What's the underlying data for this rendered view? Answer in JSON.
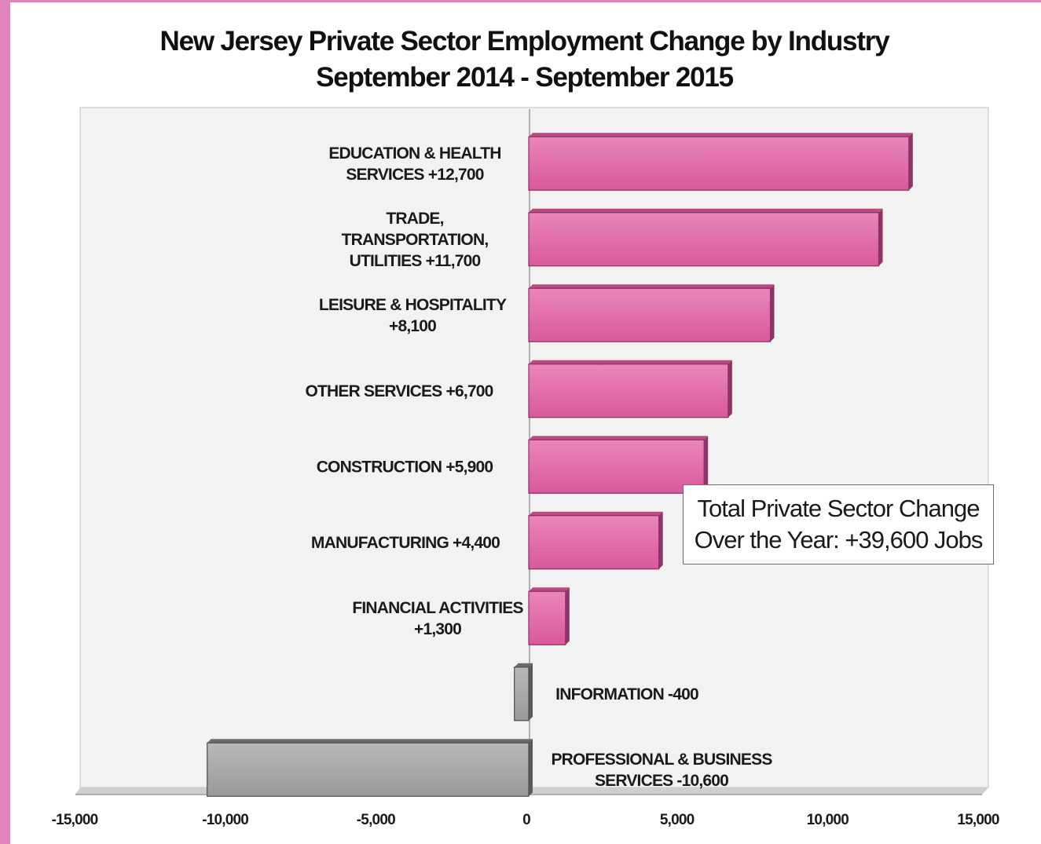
{
  "chart_data": {
    "type": "bar",
    "orientation": "horizontal",
    "title": "New Jersey Private Sector Employment Change by Industry",
    "subtitle": "September 2014 - September 2015",
    "categories": [
      "EDUCATION & HEALTH SERVICES +12,700",
      "TRADE, TRANSPORTATION, UTILITIES +11,700",
      "LEISURE & HOSPITALITY +8,100",
      "OTHER SERVICES +6,700",
      "CONSTRUCTION +5,900",
      "MANUFACTURING +4,400",
      "FINANCIAL ACTIVITIES +1,300",
      "INFORMATION -400",
      "PROFESSIONAL & BUSINESS SERVICES -10,600"
    ],
    "category_label_lines": [
      [
        "EDUCATION & HEALTH",
        "SERVICES  +12,700"
      ],
      [
        "TRADE,",
        "TRANSPORTATION,",
        "UTILITIES +11,700"
      ],
      [
        "LEISURE & HOSPITALITY",
        "+8,100"
      ],
      [
        "OTHER SERVICES +6,700"
      ],
      [
        "CONSTRUCTION +5,900"
      ],
      [
        "MANUFACTURING +4,400"
      ],
      [
        "FINANCIAL ACTIVITIES",
        "+1,300"
      ],
      [
        "INFORMATION -400"
      ],
      [
        "PROFESSIONAL & BUSINESS",
        "SERVICES  -10,600"
      ]
    ],
    "values": [
      12700,
      11700,
      8100,
      6700,
      5900,
      4400,
      1300,
      -400,
      -10600
    ],
    "xlim": [
      -15000,
      15000
    ],
    "xticks": [
      -15000,
      -10000,
      -5000,
      0,
      5000,
      10000,
      15000
    ],
    "xtick_labels": [
      "-15,000",
      "-10,000",
      "-5,000",
      "0",
      "5,000",
      "10,000",
      "15,000"
    ],
    "xlabel": "",
    "ylabel": "",
    "grid": false,
    "legend": "none",
    "annotation": {
      "lines": [
        "Total Private Sector Change",
        "Over the Year: +39,600 Jobs"
      ]
    },
    "colors": {
      "positive_bar": "#e26aa8",
      "positive_bar_edge": "#8c2f62",
      "negative_bar": "#a6a6a6",
      "negative_bar_edge": "#4d4d4d",
      "plot_background": "#f2f2f2",
      "frame_stripe": "#e184be"
    }
  }
}
